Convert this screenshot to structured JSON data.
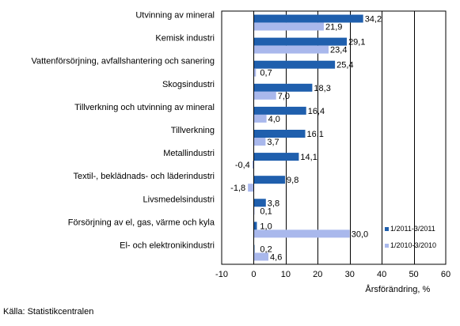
{
  "chart_data": {
    "type": "bar",
    "orientation": "horizontal",
    "categories": [
      "Utvinning av mineral",
      "Kemisk industri",
      "Vattenförsörjning, avfallshantering och sanering",
      "Skogsindustri",
      "Tillverkning och utvinning av mineral",
      "Tillverkning",
      "Metallindustri",
      "Textil-, beklädnads- och läderindustri",
      "Livsmedelsindustri",
      "Försörjning av el, gas, värme och kyla",
      "El- och elektronikindustri"
    ],
    "series": [
      {
        "name": "1/2011-3/2011",
        "color": "#1f5fad",
        "values": [
          34.2,
          29.1,
          25.4,
          18.3,
          16.4,
          16.1,
          14.1,
          9.8,
          3.8,
          1.0,
          0.2
        ],
        "labels": [
          "34,2",
          "29,1",
          "25,4",
          "18,3",
          "16,4",
          "16,1",
          "14,1",
          "9,8",
          "3,8",
          "1,0",
          "0,2"
        ]
      },
      {
        "name": "1/2010-3/2010",
        "color": "#a9b8ec",
        "values": [
          21.9,
          23.4,
          0.7,
          7.0,
          4.0,
          3.7,
          -0.4,
          -1.8,
          0.1,
          30.0,
          4.6
        ],
        "labels": [
          "21,9",
          "23,4",
          "0,7",
          "7,0",
          "4,0",
          "3,7",
          "-0,4",
          "-1,8",
          "0,1",
          "30,0",
          "4,6"
        ]
      }
    ],
    "xlabel": "Årsförändring, %",
    "ylabel": "",
    "xlim": [
      -10,
      60
    ],
    "xticks": [
      -10,
      0,
      10,
      20,
      30,
      40,
      50,
      60
    ],
    "xtick_labels": [
      "-10",
      "0",
      "10",
      "20",
      "30",
      "40",
      "50",
      "60"
    ],
    "grid": "vertical lines",
    "legend_position": "bottom-right inside plot"
  },
  "source": "Källa: Statistikcentralen"
}
